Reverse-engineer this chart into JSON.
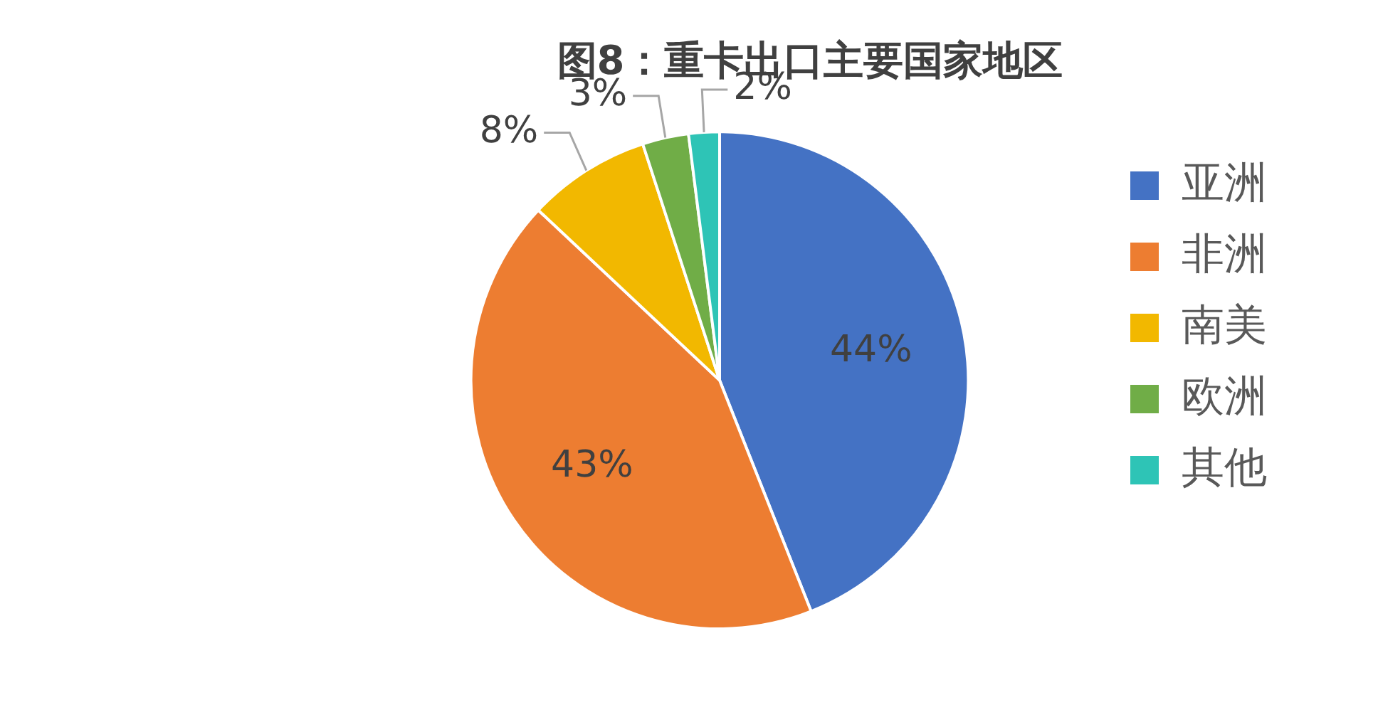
{
  "chart_data": {
    "type": "pie",
    "title": "图8：重卡出口主要国家地区",
    "categories": [
      "亚洲",
      "非洲",
      "南美",
      "欧洲",
      "其他"
    ],
    "values": [
      44,
      43,
      8,
      3,
      2
    ],
    "colors": [
      "#4472c4",
      "#ed7d31",
      "#f2b800",
      "#70ad47",
      "#2ec4b6"
    ],
    "value_labels": [
      "44%",
      "43%",
      "8%",
      "3%",
      "2%"
    ],
    "legend": "right"
  }
}
